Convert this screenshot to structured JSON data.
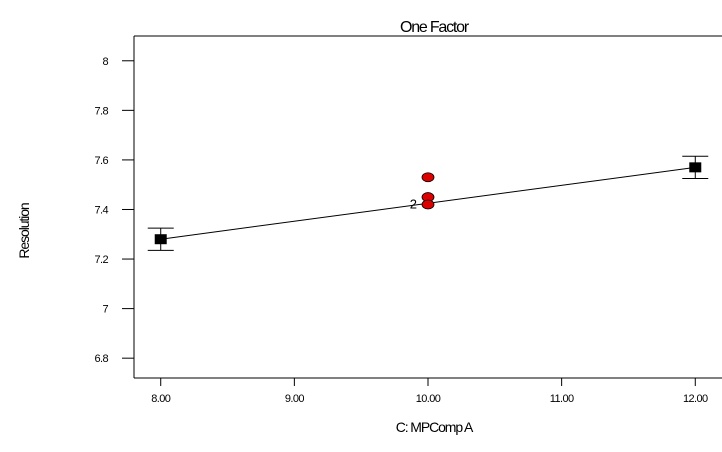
{
  "chart_data": {
    "type": "scatter",
    "title": "One Factor",
    "xlabel": "C: MPComp A",
    "ylabel": "Resolution",
    "xlim": [
      7.8,
      12.2
    ],
    "ylim": [
      6.72,
      8.1
    ],
    "x_ticks": [
      "8.00",
      "9.00",
      "10.00",
      "11.00",
      "12.00"
    ],
    "y_ticks": [
      "6.8",
      "7",
      "7.2",
      "7.4",
      "7.6",
      "7.8",
      "8"
    ],
    "grid": false,
    "fit_line": {
      "x": [
        8.0,
        12.0
      ],
      "y": [
        7.28,
        7.57
      ]
    },
    "design_points": {
      "x": [
        8.0,
        12.0
      ],
      "y": [
        7.28,
        7.57
      ],
      "ci_low": [
        7.235,
        7.525
      ],
      "ci_high": [
        7.325,
        7.615
      ]
    },
    "observations": {
      "x": [
        10.0,
        10.0,
        10.0
      ],
      "y": [
        7.53,
        7.45,
        7.42
      ],
      "color": "#dd0000"
    },
    "annotations": [
      {
        "text": "2",
        "x": 10.0,
        "y": 7.42
      }
    ]
  }
}
